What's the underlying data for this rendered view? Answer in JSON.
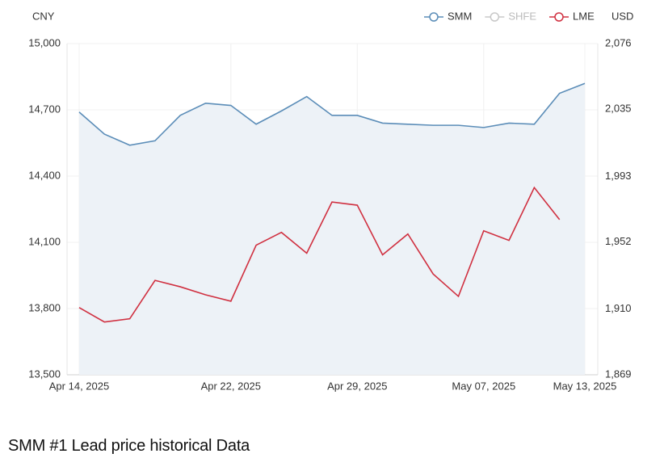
{
  "chart_data": {
    "type": "line",
    "title": "SMM #1 Lead price historical Data",
    "y_label": "CNY",
    "y2_label": "USD",
    "categories": [
      "Apr 14, 2025",
      null,
      null,
      null,
      null,
      null,
      "Apr 22, 2025",
      null,
      null,
      null,
      null,
      "Apr 29, 2025",
      null,
      null,
      null,
      null,
      "May 07, 2025",
      null,
      null,
      null,
      "May 13, 2025"
    ],
    "series": [
      {
        "name": "SMM",
        "color": "#5b8db8",
        "values": [
          14690,
          14590,
          14540,
          14560,
          14675,
          14730,
          14720,
          14635,
          14695,
          14760,
          14675,
          14675,
          14640,
          14635,
          14630,
          14630,
          14620,
          14640,
          14635,
          14775,
          14820
        ]
      },
      {
        "name": "SHFE",
        "color": "#c8c8c8",
        "values": [
          null,
          null,
          null,
          null,
          null,
          null,
          null,
          null,
          null,
          null,
          null,
          null,
          null,
          null,
          null,
          null,
          null,
          null,
          null,
          null,
          null
        ]
      },
      {
        "name": "LME",
        "color": "#d03040",
        "axis": "y2",
        "values": [
          1911,
          1902,
          1904,
          1928,
          1924,
          1919,
          1915,
          1950,
          1958,
          1945,
          1977,
          1975,
          1944,
          1957,
          1932,
          1918,
          1959,
          1953,
          1986,
          1966,
          null
        ]
      }
    ],
    "ylim": [
      13500,
      15000
    ],
    "yticks": [
      {
        "value": 13500,
        "label": "13,500"
      },
      {
        "value": 13800,
        "label": "13,800"
      },
      {
        "value": 14100,
        "label": "14,100"
      },
      {
        "value": 14400,
        "label": "14,400"
      },
      {
        "value": 14700,
        "label": "14,700"
      },
      {
        "value": 15000,
        "label": "15,000"
      }
    ],
    "y2lim": [
      1869,
      2076
    ],
    "y2ticks": [
      {
        "value": 1869,
        "label": "1,869"
      },
      {
        "value": 1910,
        "label": "1,910"
      },
      {
        "value": 1952,
        "label": "1,952"
      },
      {
        "value": 1993,
        "label": "1,993"
      },
      {
        "value": 2035,
        "label": "2,035"
      },
      {
        "value": 2076,
        "label": "2,076"
      }
    ],
    "area_fill": "#edf2f7",
    "grid": true,
    "legend": "top-right"
  }
}
